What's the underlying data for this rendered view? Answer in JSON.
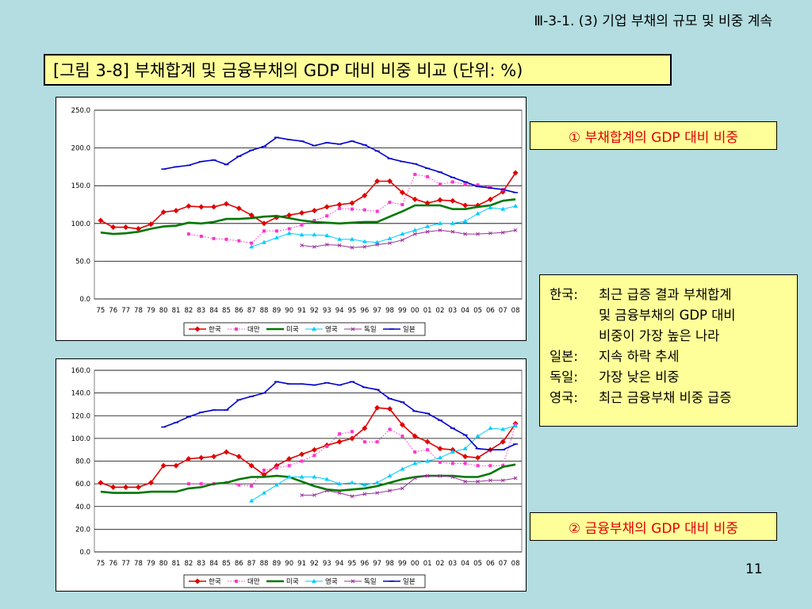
{
  "header": "Ⅲ-3-1. (3) 기업 부채의 규모 및 비중 계속",
  "figure_title": "[그림 3-8] 부채합계 및 금융부채의 GDP 대비 비중 비교 (단위: %)",
  "label1": "① 부채합계의 GDP 대비 비중",
  "label2": "② 금융부채의 GDP 대비 비중",
  "notes": [
    {
      "key": "한국:",
      "text": "최근 급증 결과 부채합계"
    },
    {
      "key": "",
      "text": "및 금융부채의 GDP 대비"
    },
    {
      "key": "",
      "text": "비중이 가장 높은 나라"
    },
    {
      "key": "일본:",
      "text": "지속 하락 추세"
    },
    {
      "key": "독일:",
      "text": "가장 낮은 비중"
    },
    {
      "key": "영국:",
      "text": "최근 금융부채 비중 급증"
    }
  ],
  "page_number": "11",
  "chart_data": [
    {
      "type": "line",
      "x": [
        "75",
        "76",
        "77",
        "78",
        "79",
        "80",
        "81",
        "82",
        "83",
        "84",
        "85",
        "86",
        "87",
        "88",
        "89",
        "90",
        "91",
        "92",
        "93",
        "94",
        "95",
        "96",
        "97",
        "98",
        "99",
        "00",
        "01",
        "02",
        "03",
        "04",
        "05",
        "06",
        "07",
        "08"
      ],
      "ylim": [
        0,
        250
      ],
      "yticks": [
        "0.0",
        "50.0",
        "100.0",
        "150.0",
        "200.0",
        "250.0"
      ],
      "grid": true,
      "legend": "bottom",
      "series": [
        {
          "name": "한국",
          "color": "#e00000",
          "marker": "diamond",
          "style": "solid",
          "width": 1.6,
          "values": [
            104,
            95,
            95,
            93,
            99,
            115,
            117,
            123,
            122,
            122,
            126,
            120,
            111,
            100,
            108,
            111,
            114,
            117,
            122,
            125,
            127,
            137,
            156,
            156,
            141,
            132,
            127,
            131,
            130,
            124,
            124,
            132,
            142,
            167
          ]
        },
        {
          "name": "대만",
          "color": "#ff33cc",
          "marker": "square",
          "style": "dotted",
          "width": 1,
          "values": [
            null,
            null,
            null,
            null,
            null,
            null,
            null,
            86,
            83,
            80,
            79,
            77,
            74,
            90,
            90,
            93,
            98,
            104,
            110,
            120,
            119,
            118,
            116,
            128,
            125,
            165,
            162,
            152,
            155,
            152,
            151,
            148,
            145,
            null
          ]
        },
        {
          "name": "미국",
          "color": "#007700",
          "marker": "none",
          "style": "solid",
          "width": 2.6,
          "values": [
            88,
            86,
            87,
            89,
            93,
            96,
            97,
            101,
            100,
            102,
            106,
            106,
            107,
            109,
            110,
            107,
            104,
            102,
            101,
            100,
            101,
            102,
            102,
            109,
            116,
            124,
            124,
            124,
            119,
            119,
            122,
            124,
            130,
            132
          ]
        },
        {
          "name": "영국",
          "color": "#00ccff",
          "marker": "triangle",
          "style": "solid",
          "width": 1,
          "values": [
            null,
            null,
            null,
            null,
            null,
            null,
            null,
            null,
            null,
            null,
            null,
            null,
            69,
            75,
            81,
            87,
            85,
            85,
            84,
            79,
            79,
            76,
            75,
            80,
            86,
            91,
            96,
            100,
            100,
            103,
            113,
            121,
            119,
            123
          ]
        },
        {
          "name": "독일",
          "color": "#993399",
          "marker": "x",
          "style": "solid",
          "width": 1,
          "values": [
            null,
            null,
            null,
            null,
            null,
            null,
            null,
            null,
            null,
            null,
            null,
            null,
            null,
            null,
            null,
            null,
            71,
            69,
            72,
            71,
            68,
            69,
            72,
            74,
            78,
            86,
            89,
            91,
            89,
            86,
            86,
            87,
            88,
            91
          ]
        },
        {
          "name": "일본",
          "color": "#0000cc",
          "marker": "dash",
          "style": "solid",
          "width": 1.6,
          "values": [
            null,
            null,
            null,
            null,
            null,
            172,
            175,
            177,
            182,
            184,
            178,
            189,
            197,
            202,
            214,
            211,
            209,
            203,
            207,
            205,
            209,
            204,
            196,
            186,
            182,
            179,
            173,
            168,
            161,
            155,
            149,
            147,
            145,
            141
          ]
        }
      ]
    },
    {
      "type": "line",
      "x": [
        "75",
        "76",
        "77",
        "78",
        "79",
        "80",
        "81",
        "82",
        "83",
        "84",
        "85",
        "86",
        "87",
        "88",
        "89",
        "90",
        "91",
        "92",
        "93",
        "94",
        "95",
        "96",
        "97",
        "98",
        "99",
        "00",
        "01",
        "02",
        "03",
        "04",
        "05",
        "06",
        "07",
        "08"
      ],
      "ylim": [
        0,
        160
      ],
      "yticks": [
        "0.0",
        "20.0",
        "40.0",
        "60.0",
        "80.0",
        "100.0",
        "120.0",
        "140.0",
        "160.0"
      ],
      "grid": true,
      "legend": "bottom",
      "series": [
        {
          "name": "한국",
          "color": "#e00000",
          "marker": "diamond",
          "style": "solid",
          "width": 1.6,
          "values": [
            61,
            57,
            57,
            57,
            61,
            76,
            76,
            82,
            83,
            84,
            88,
            84,
            76,
            68,
            76,
            82,
            86,
            90,
            94,
            97,
            100,
            109,
            127,
            126,
            112,
            102,
            97,
            91,
            90,
            84,
            83,
            90,
            97,
            113
          ]
        },
        {
          "name": "대만",
          "color": "#ff33cc",
          "marker": "square",
          "style": "dotted",
          "width": 1,
          "values": [
            null,
            null,
            null,
            null,
            null,
            null,
            null,
            60,
            60,
            60,
            61,
            59,
            58,
            72,
            74,
            76,
            80,
            85,
            93,
            104,
            106,
            97,
            97,
            108,
            102,
            88,
            90,
            79,
            78,
            78,
            76,
            76,
            76,
            112
          ]
        },
        {
          "name": "미국",
          "color": "#007700",
          "marker": "none",
          "style": "solid",
          "width": 2.6,
          "values": [
            53,
            52,
            52,
            52,
            53,
            53,
            53,
            56,
            57,
            60,
            61,
            64,
            66,
            66,
            67,
            66,
            62,
            58,
            55,
            54,
            55,
            56,
            58,
            61,
            64,
            66,
            67,
            67,
            67,
            66,
            66,
            69,
            75,
            77
          ]
        },
        {
          "name": "영국",
          "color": "#00ccff",
          "marker": "triangle",
          "style": "solid",
          "width": 1,
          "values": [
            null,
            null,
            null,
            null,
            null,
            null,
            null,
            null,
            null,
            null,
            null,
            null,
            45,
            52,
            59,
            66,
            66,
            66,
            64,
            60,
            61,
            59,
            61,
            67,
            73,
            78,
            80,
            83,
            88,
            91,
            102,
            109,
            108,
            111
          ]
        },
        {
          "name": "독일",
          "color": "#993399",
          "marker": "x",
          "style": "solid",
          "width": 1,
          "values": [
            null,
            null,
            null,
            null,
            null,
            null,
            null,
            null,
            null,
            null,
            null,
            null,
            null,
            null,
            null,
            null,
            50,
            50,
            54,
            52,
            49,
            51,
            52,
            54,
            56,
            65,
            67,
            67,
            66,
            62,
            62,
            63,
            63,
            65
          ]
        },
        {
          "name": "일본",
          "color": "#0000cc",
          "marker": "dash",
          "style": "solid",
          "width": 1.6,
          "values": [
            null,
            null,
            null,
            null,
            null,
            110,
            114,
            119,
            123,
            125,
            125,
            134,
            137,
            140,
            150,
            148,
            148,
            147,
            149,
            147,
            150,
            145,
            143,
            135,
            132,
            124,
            122,
            116,
            109,
            103,
            91,
            90,
            90,
            95
          ]
        }
      ]
    }
  ]
}
